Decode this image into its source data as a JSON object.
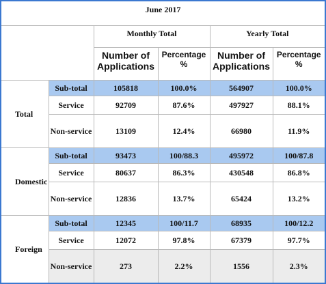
{
  "table": {
    "title": "June 2017",
    "column_groups": [
      "Monthly Total",
      "Yearly Total"
    ],
    "columns": [
      "Number of Applications",
      "Percentage %",
      "Number of Applications",
      "Percentage %"
    ],
    "groups": [
      {
        "name": "Total",
        "rows": [
          {
            "label": "Sub-total",
            "cells": [
              105818,
              "100.0%",
              564907,
              "100.0%"
            ]
          },
          {
            "label": "Service",
            "cells": [
              92709,
              "87.6%",
              497927,
              "88.1%"
            ]
          },
          {
            "label": "Non-service",
            "cells": [
              13109,
              "12.4%",
              66980,
              "11.9%"
            ]
          }
        ]
      },
      {
        "name": "Domestic",
        "rows": [
          {
            "label": "Sub-total",
            "cells": [
              93473,
              "100/88.3",
              495972,
              "100/87.8"
            ]
          },
          {
            "label": "Service",
            "cells": [
              80637,
              "86.3%",
              430548,
              "86.8%"
            ]
          },
          {
            "label": "Non-service",
            "cells": [
              12836,
              "13.7%",
              65424,
              "13.2%"
            ]
          }
        ]
      },
      {
        "name": "Foreign",
        "rows": [
          {
            "label": "Sub-total",
            "cells": [
              12345,
              "100/11.7",
              68935,
              "100/12.2"
            ]
          },
          {
            "label": "Service",
            "cells": [
              12072,
              "97.8%",
              67379,
              "97.7%"
            ]
          },
          {
            "label": "Non-service",
            "cells": [
              273,
              "2.2%",
              1556,
              "2.3%"
            ]
          }
        ]
      }
    ]
  }
}
